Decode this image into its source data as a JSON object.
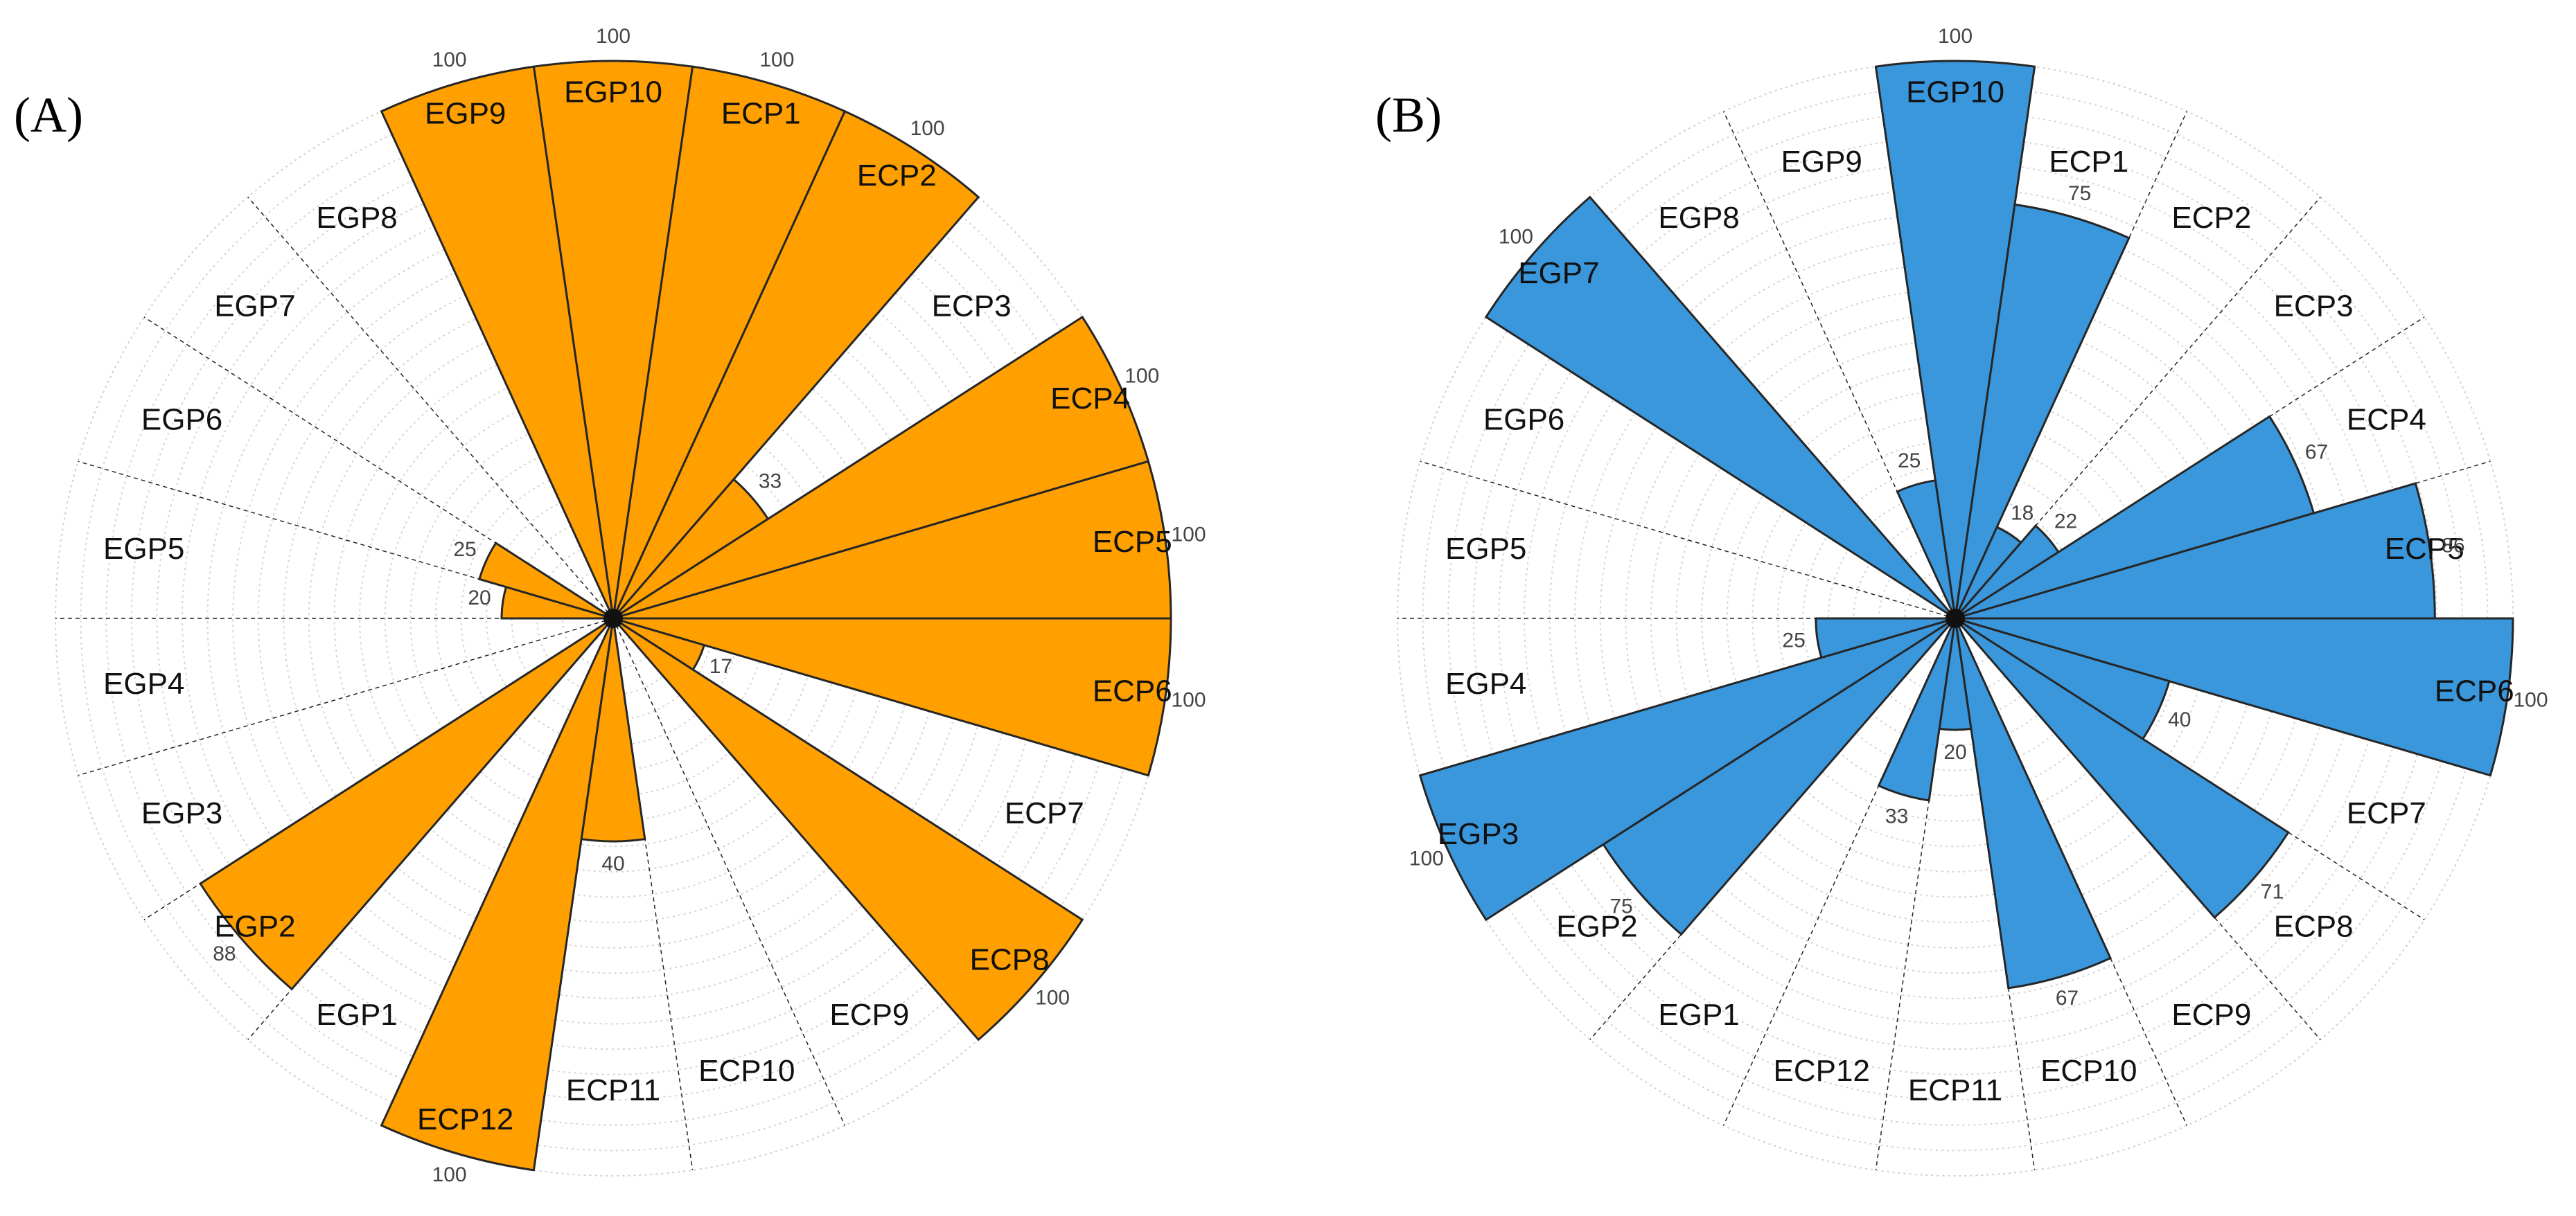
{
  "colors": {
    "panel_a": "#FFA000",
    "panel_b": "#3A97DC"
  },
  "chart_data": [
    {
      "type": "polar-bar",
      "panel_label": "(A)",
      "color": "#FFA000",
      "rlim": [
        0,
        100
      ],
      "categories": [
        "EGP10",
        "ECP1",
        "ECP2",
        "ECP3",
        "ECP4",
        "ECP5",
        "ECP6",
        "ECP7",
        "ECP8",
        "ECP9",
        "ECP10",
        "ECP11",
        "ECP12",
        "EGP1",
        "EGP2",
        "EGP3",
        "EGP4",
        "EGP5",
        "EGP6",
        "EGP7",
        "EGP8",
        "EGP9"
      ],
      "values": [
        100,
        100,
        100,
        33,
        100,
        100,
        100,
        17,
        100,
        0,
        0,
        40,
        100,
        0,
        88,
        0,
        0,
        20,
        25,
        0,
        0,
        100
      ],
      "value_labels": [
        "100",
        "100",
        "100",
        "33",
        "100",
        "100",
        "100",
        "17",
        "100",
        "",
        "",
        "40",
        "100",
        "",
        "88",
        "",
        "",
        "20",
        "25",
        "",
        "",
        "100"
      ]
    },
    {
      "type": "polar-bar",
      "panel_label": "(B)",
      "color": "#3A97DC",
      "rlim": [
        0,
        100
      ],
      "categories": [
        "EGP10",
        "ECP1",
        "ECP2",
        "ECP3",
        "ECP4",
        "ECP5",
        "ECP6",
        "ECP7",
        "ECP8",
        "ECP9",
        "ECP10",
        "ECP11",
        "ECP12",
        "EGP1",
        "EGP2",
        "EGP3",
        "EGP4",
        "EGP5",
        "EGP6",
        "EGP7",
        "EGP8",
        "EGP9"
      ],
      "values": [
        100,
        75,
        18,
        22,
        67,
        86,
        100,
        40,
        71,
        0,
        67,
        20,
        33,
        0,
        75,
        100,
        25,
        0,
        0,
        100,
        0,
        25
      ],
      "value_labels": [
        "100",
        "75",
        "18",
        "22",
        "67",
        "86",
        "100",
        "40",
        "71",
        "",
        "67",
        "20",
        "33",
        "",
        "75",
        "100",
        "25",
        "",
        "",
        "100",
        "",
        "25"
      ]
    }
  ]
}
